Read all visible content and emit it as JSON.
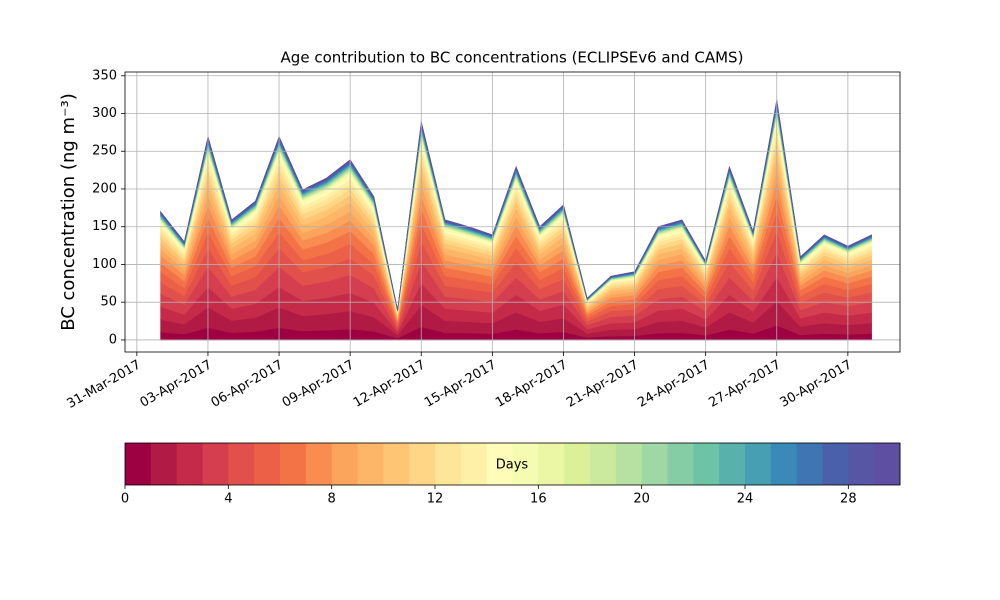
{
  "chart_data": {
    "type": "stacked_area",
    "title": "Age contribution to BC concentrations (ECLIPSEv6 and CAMS)",
    "y_label": "BC concentration (ng m⁻³)",
    "x": [
      1,
      2,
      3,
      4,
      5,
      6,
      7,
      8,
      9,
      10,
      11,
      12,
      13,
      14,
      15,
      16,
      17,
      18,
      19,
      20,
      21,
      22,
      23,
      24,
      25,
      26,
      27,
      28,
      29,
      30,
      31
    ],
    "xlim": [
      -0.5,
      32.2
    ],
    "xticks": [
      {
        "value": 0,
        "label": "31-Mar-2017"
      },
      {
        "value": 3,
        "label": "03-Apr-2017"
      },
      {
        "value": 6,
        "label": "06-Apr-2017"
      },
      {
        "value": 9,
        "label": "09-Apr-2017"
      },
      {
        "value": 12,
        "label": "12-Apr-2017"
      },
      {
        "value": 15,
        "label": "15-Apr-2017"
      },
      {
        "value": 18,
        "label": "18-Apr-2017"
      },
      {
        "value": 21,
        "label": "21-Apr-2017"
      },
      {
        "value": 24,
        "label": "24-Apr-2017"
      },
      {
        "value": 27,
        "label": "27-Apr-2017"
      },
      {
        "value": 30,
        "label": "30-Apr-2017"
      }
    ],
    "ylim": [
      -16,
      355
    ],
    "yticks": [
      0,
      50,
      100,
      150,
      200,
      250,
      300,
      350
    ],
    "grid": true,
    "series": [
      {
        "color": "#9e0142",
        "values": [
          10.2,
          7.8,
          16.2,
          9.6,
          11.1,
          16.2,
          12,
          12.9,
          14.4,
          11.4,
          2.4,
          17.4,
          9.6,
          9,
          8.4,
          13.8,
          9,
          10.8,
          3.3,
          5.1,
          5.4,
          9,
          9.6,
          6.3,
          13.8,
          8.7,
          19.2,
          6.6,
          8.4,
          7.5,
          8.4
        ]
      },
      {
        "color": "#b11a44",
        "values": [
          17,
          13,
          27,
          16,
          18.5,
          27,
          20,
          21.5,
          24,
          19,
          4,
          29,
          16,
          15,
          14,
          23,
          15,
          18,
          5.5,
          8.5,
          9,
          15,
          16,
          10.5,
          23,
          14.5,
          32,
          11,
          14,
          12.5,
          14
        ]
      },
      {
        "color": "#c52a48",
        "values": [
          17,
          13,
          27,
          16,
          18.5,
          27,
          20,
          21.5,
          24,
          19,
          4,
          29,
          16,
          15,
          14,
          23,
          15,
          18,
          5.5,
          8.5,
          9,
          15,
          16,
          10.5,
          23,
          14.5,
          32,
          11,
          14,
          12.5,
          14
        ]
      },
      {
        "color": "#d53e4f",
        "values": [
          17,
          13,
          27,
          16,
          18.5,
          27,
          20,
          21.5,
          24,
          19,
          4,
          29,
          16,
          15,
          14,
          23,
          15,
          18,
          5.5,
          8.5,
          9,
          15,
          16,
          10.5,
          23,
          14.5,
          32,
          11,
          14,
          12.5,
          14
        ]
      },
      {
        "color": "#e1504a",
        "values": [
          15.3,
          11.7,
          24.3,
          14.4,
          16.7,
          24.3,
          18,
          19.4,
          21.6,
          17.1,
          3.6,
          26.1,
          14.4,
          13.5,
          12.6,
          20.7,
          13.5,
          16.2,
          5,
          7.7,
          8.1,
          13.5,
          14.4,
          9.5,
          20.7,
          13.1,
          28.8,
          9.9,
          12.6,
          11.3,
          12.6
        ]
      },
      {
        "color": "#eb6046",
        "values": [
          13.6,
          10.4,
          21.6,
          12.8,
          14.8,
          21.6,
          16,
          17.2,
          19.2,
          15.2,
          3.2,
          23.2,
          12.8,
          12,
          11.2,
          18.4,
          12,
          14.4,
          4.4,
          6.8,
          7.2,
          12,
          12.8,
          8.4,
          18.4,
          11.6,
          25.6,
          8.8,
          11.2,
          10,
          11.2
        ]
      },
      {
        "color": "#f47346",
        "values": [
          11.9,
          9.1,
          18.9,
          11.2,
          13,
          18.9,
          14,
          15.1,
          16.8,
          13.3,
          2.8,
          20.3,
          11.2,
          10.5,
          9.8,
          16.1,
          10.5,
          12.6,
          3.9,
          6,
          6.3,
          10.5,
          11.2,
          7.4,
          16.1,
          10.2,
          22.4,
          7.7,
          9.8,
          8.8,
          9.8
        ]
      },
      {
        "color": "#f88c51",
        "values": [
          10.2,
          7.8,
          16.2,
          9.6,
          11.1,
          16.2,
          12,
          12.9,
          14.4,
          11.4,
          2.4,
          17.4,
          9.6,
          9,
          8.4,
          13.8,
          9,
          10.8,
          3.3,
          5.1,
          5.4,
          9,
          9.6,
          6.3,
          13.8,
          8.7,
          19.2,
          6.6,
          8.4,
          7.5,
          8.4
        ]
      },
      {
        "color": "#fba45c",
        "values": [
          8.5,
          6.5,
          13.5,
          8,
          9.3,
          13.5,
          10,
          10.8,
          12,
          9.5,
          2,
          14.5,
          8,
          7.5,
          7,
          11.5,
          7.5,
          9,
          2.8,
          4.3,
          4.5,
          7.5,
          8,
          5.3,
          11.5,
          7.3,
          16,
          5.5,
          7,
          6.3,
          7
        ]
      },
      {
        "color": "#fdb567",
        "values": [
          8.5,
          6.5,
          13.5,
          8,
          9.3,
          13.5,
          10,
          10.8,
          12,
          9.5,
          2,
          14.5,
          8,
          7.5,
          7,
          11.5,
          7.5,
          9,
          2.8,
          4.3,
          4.5,
          7.5,
          8,
          5.3,
          11.5,
          7.3,
          16,
          5.5,
          7,
          6.3,
          7
        ]
      },
      {
        "color": "#fdc574",
        "values": [
          6.8,
          5.2,
          10.8,
          6.4,
          7.4,
          10.8,
          8,
          8.6,
          9.6,
          7.6,
          1.6,
          11.6,
          6.4,
          6,
          5.6,
          9.2,
          6,
          7.2,
          2.2,
          3.4,
          3.6,
          6,
          6.4,
          4.2,
          9.2,
          5.8,
          12.8,
          4.4,
          5.6,
          5,
          5.6
        ]
      },
      {
        "color": "#fed685",
        "values": [
          6,
          4.6,
          9.5,
          5.6,
          6.5,
          9.5,
          7,
          7.5,
          8.4,
          6.7,
          1.4,
          10.2,
          5.6,
          5.3,
          4.9,
          8.1,
          5.3,
          6.3,
          1.9,
          3,
          3.2,
          5.3,
          5.6,
          3.7,
          8.1,
          5.1,
          11.2,
          3.9,
          4.9,
          4.4,
          4.9
        ]
      },
      {
        "color": "#fee597",
        "values": [
          5.1,
          3.9,
          8.1,
          4.8,
          5.6,
          8.1,
          6,
          6.5,
          7.2,
          5.7,
          1.2,
          8.7,
          4.8,
          4.5,
          4.2,
          6.9,
          4.5,
          5.4,
          1.7,
          2.6,
          2.7,
          4.5,
          4.8,
          3.2,
          6.9,
          4.4,
          9.6,
          3.3,
          4.2,
          3.8,
          4.2
        ]
      },
      {
        "color": "#fff0a7",
        "values": [
          4.3,
          3.3,
          6.8,
          4,
          4.6,
          6.8,
          5,
          5.4,
          6,
          4.8,
          1,
          7.3,
          4,
          3.8,
          3.5,
          5.8,
          3.8,
          4.5,
          1.4,
          2.1,
          2.3,
          3.8,
          4,
          2.6,
          5.8,
          3.6,
          8,
          2.8,
          3.5,
          3.1,
          3.5
        ]
      },
      {
        "color": "#fffbb8",
        "values": [
          3.4,
          2.6,
          5.4,
          3.2,
          3.7,
          5.4,
          4,
          4.3,
          4.8,
          3.8,
          0.8,
          5.8,
          3.2,
          3,
          2.8,
          4.6,
          3,
          3.6,
          1.1,
          1.7,
          1.8,
          3,
          3.2,
          2.1,
          4.6,
          2.9,
          6.4,
          2.2,
          2.8,
          2.5,
          2.8
        ]
      },
      {
        "color": "#f6fbb2",
        "values": [
          2.6,
          2,
          4.1,
          2.4,
          2.8,
          4.1,
          3,
          3.2,
          3.6,
          2.9,
          0.6,
          4.4,
          2.4,
          2.3,
          2.1,
          3.5,
          2.3,
          2.7,
          0.8,
          1.3,
          1.4,
          2.3,
          2.4,
          1.6,
          3.5,
          2.2,
          4.8,
          1.7,
          2.1,
          1.9,
          2.1
        ]
      },
      {
        "color": "#ebf7a4",
        "values": [
          0.9,
          0.7,
          1.4,
          0.8,
          0.9,
          1.4,
          1,
          1.1,
          1.2,
          1,
          0.2,
          1.5,
          0.8,
          0.8,
          0.7,
          1.2,
          0.8,
          0.9,
          0.3,
          0.4,
          0.5,
          0.8,
          0.8,
          0.5,
          1.2,
          0.7,
          1.6,
          0.6,
          0.7,
          0.6,
          0.7
        ]
      },
      {
        "color": "#dcf09a",
        "values": [
          0.9,
          0.7,
          1.4,
          0.8,
          0.9,
          1.4,
          1,
          1.1,
          1.2,
          1,
          0.2,
          1.5,
          0.8,
          0.8,
          0.7,
          1.2,
          0.8,
          0.9,
          0.3,
          0.4,
          0.5,
          0.8,
          0.8,
          0.5,
          1.2,
          0.7,
          1.6,
          0.6,
          0.7,
          0.6,
          0.7
        ]
      },
      {
        "color": "#cbea9d",
        "values": [
          0.9,
          0.7,
          1.4,
          0.8,
          0.9,
          1.4,
          1,
          1.1,
          1.2,
          1,
          0.2,
          1.5,
          0.8,
          0.8,
          0.7,
          1.2,
          0.8,
          0.9,
          0.3,
          0.4,
          0.5,
          0.8,
          0.8,
          0.5,
          1.2,
          0.7,
          1.6,
          0.6,
          0.7,
          0.6,
          0.7
        ]
      },
      {
        "color": "#b6e1a1",
        "values": [
          0.9,
          0.7,
          1.4,
          0.8,
          0.9,
          1.4,
          1,
          1.1,
          1.2,
          1,
          0.2,
          1.5,
          0.8,
          0.8,
          0.7,
          1.2,
          0.8,
          0.9,
          0.3,
          0.4,
          0.5,
          0.8,
          0.8,
          0.5,
          1.2,
          0.7,
          1.6,
          0.6,
          0.7,
          0.6,
          0.7
        ]
      },
      {
        "color": "#9fd8a4",
        "values": [
          0.9,
          0.7,
          1.4,
          0.8,
          0.9,
          1.4,
          1,
          1.1,
          1.2,
          1,
          0.2,
          1.5,
          0.8,
          0.8,
          0.7,
          1.2,
          0.8,
          0.9,
          0.3,
          0.4,
          0.5,
          0.8,
          0.8,
          0.5,
          1.2,
          0.7,
          1.6,
          0.6,
          0.7,
          0.6,
          0.7
        ]
      },
      {
        "color": "#85cea5",
        "values": [
          0.9,
          0.7,
          1.4,
          0.8,
          0.9,
          1.4,
          1,
          1.1,
          1.2,
          1,
          0.2,
          1.5,
          0.8,
          0.8,
          0.7,
          1.2,
          0.8,
          0.9,
          0.3,
          0.4,
          0.5,
          0.8,
          0.8,
          0.5,
          1.2,
          0.7,
          1.6,
          0.6,
          0.7,
          0.6,
          0.7
        ]
      },
      {
        "color": "#6cc3a5",
        "values": [
          0.9,
          0.7,
          1.4,
          0.8,
          0.9,
          1.4,
          1,
          1.1,
          1.2,
          1,
          0.2,
          1.5,
          0.8,
          0.8,
          0.7,
          1.2,
          0.8,
          0.9,
          0.3,
          0.4,
          0.5,
          0.8,
          0.8,
          0.5,
          1.2,
          0.7,
          1.6,
          0.6,
          0.7,
          0.6,
          0.7
        ]
      },
      {
        "color": "#58b1aa",
        "values": [
          0.9,
          0.7,
          1.4,
          0.8,
          0.9,
          1.4,
          1,
          1.1,
          1.2,
          1,
          0.2,
          1.5,
          0.8,
          0.8,
          0.7,
          1.2,
          0.8,
          0.9,
          0.3,
          0.4,
          0.5,
          0.8,
          0.8,
          0.5,
          1.2,
          0.7,
          1.6,
          0.6,
          0.7,
          0.6,
          0.7
        ]
      },
      {
        "color": "#479fb3",
        "values": [
          0.9,
          0.7,
          1.4,
          0.8,
          0.9,
          1.4,
          1,
          1.1,
          1.2,
          1,
          0.2,
          1.5,
          0.8,
          0.8,
          0.7,
          1.2,
          0.8,
          0.9,
          0.3,
          0.4,
          0.5,
          0.8,
          0.8,
          0.5,
          1.2,
          0.7,
          1.6,
          0.6,
          0.7,
          0.6,
          0.7
        ]
      },
      {
        "color": "#3a8ab9",
        "values": [
          0.9,
          0.7,
          1.4,
          0.8,
          0.9,
          1.4,
          1,
          1.1,
          1.2,
          1,
          0.2,
          1.5,
          0.8,
          0.8,
          0.7,
          1.2,
          0.8,
          0.9,
          0.3,
          0.4,
          0.5,
          0.8,
          0.8,
          0.5,
          1.2,
          0.7,
          1.6,
          0.6,
          0.7,
          0.6,
          0.7
        ]
      },
      {
        "color": "#3f75b3",
        "values": [
          0.9,
          0.7,
          1.4,
          0.8,
          0.9,
          1.4,
          1,
          1.1,
          1.2,
          1,
          0.2,
          1.5,
          0.8,
          0.8,
          0.7,
          1.2,
          0.8,
          0.9,
          0.3,
          0.4,
          0.5,
          0.8,
          0.8,
          0.5,
          1.2,
          0.7,
          1.6,
          0.6,
          0.7,
          0.6,
          0.7
        ]
      },
      {
        "color": "#4b60aa",
        "values": [
          0.9,
          0.7,
          1.4,
          0.8,
          0.9,
          1.4,
          1,
          1.1,
          1.2,
          1,
          0.2,
          1.5,
          0.8,
          0.8,
          0.7,
          1.2,
          0.8,
          0.9,
          0.3,
          0.4,
          0.5,
          0.8,
          0.8,
          0.5,
          1.2,
          0.7,
          1.6,
          0.6,
          0.7,
          0.6,
          0.7
        ]
      },
      {
        "color": "#5656a4",
        "values": [
          0.9,
          0.7,
          1.4,
          0.8,
          0.9,
          1.4,
          1,
          1.1,
          1.2,
          1,
          0.2,
          1.5,
          0.8,
          0.8,
          0.7,
          1.2,
          0.8,
          0.9,
          0.3,
          0.4,
          0.5,
          0.8,
          0.8,
          0.5,
          1.2,
          0.7,
          1.6,
          0.6,
          0.7,
          0.6,
          0.7
        ]
      },
      {
        "color": "#5e4fa2",
        "values": [
          0.9,
          0.7,
          1.4,
          0.8,
          0.9,
          1.4,
          1,
          1.1,
          1.2,
          1,
          0.2,
          1.5,
          0.8,
          0.8,
          0.7,
          1.2,
          0.8,
          0.9,
          0.3,
          0.4,
          0.5,
          0.8,
          0.8,
          0.5,
          1.2,
          0.7,
          1.6,
          0.6,
          0.7,
          0.6,
          0.7
        ]
      }
    ],
    "colorbar": {
      "label": "Days",
      "lim": [
        0,
        30
      ],
      "ticks": [
        0,
        4,
        8,
        12,
        16,
        20,
        24,
        28
      ]
    }
  }
}
